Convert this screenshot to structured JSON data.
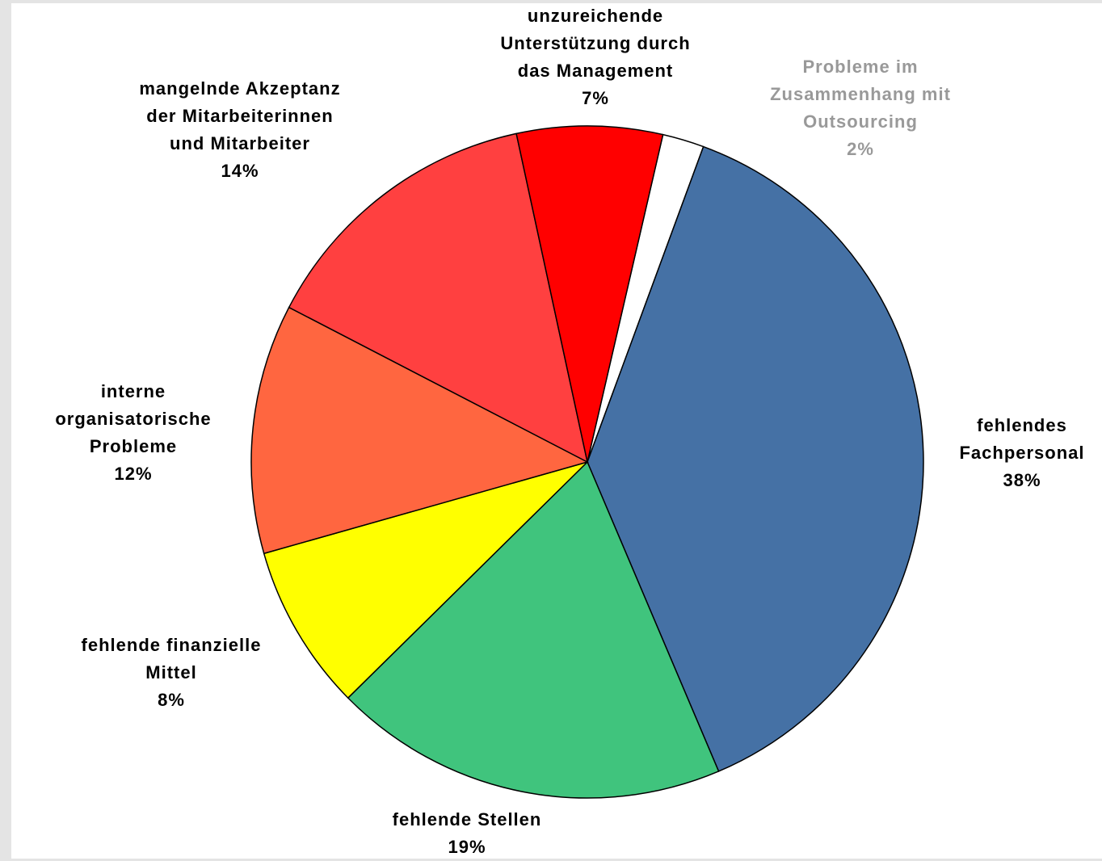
{
  "chart_data": {
    "type": "pie",
    "categories": [
      "Probleme im\nZusammenhang mit\nOutsourcing",
      "fehlendes\nFachpersonal",
      "fehlende Stellen",
      "fehlende finanzielle\nMittel",
      "interne\norganisatorische\nProbleme",
      "mangelnde Akzeptanz\nder Mitarbeiterinnen\nund Mitarbeiter",
      "unzureichende\nUnterstützung durch\ndas Management"
    ],
    "values": [
      2,
      38,
      19,
      8,
      12,
      14,
      7
    ],
    "value_labels": [
      "2%",
      "38%",
      "19%",
      "8%",
      "12%",
      "14%",
      "7%"
    ],
    "colors": [
      "#ffffff",
      "#4571a5",
      "#40c47d",
      "#ffff00",
      "#ff6640",
      "#ff4040",
      "#ff0000"
    ]
  }
}
